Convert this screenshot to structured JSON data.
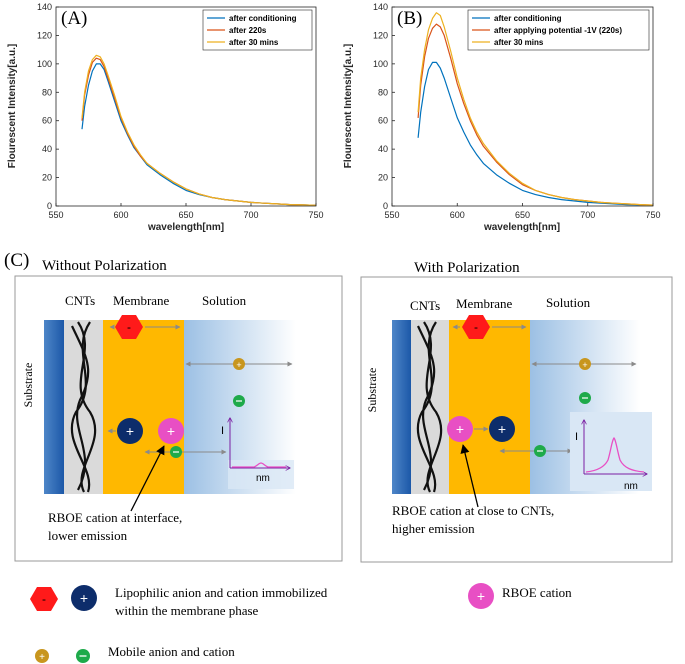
{
  "chart_data": [
    {
      "type": "line",
      "panel_label": "(A)",
      "xlabel": "wavelength[nm]",
      "ylabel": "Flourescent Intensity[a.u.]",
      "xlim": [
        550,
        750
      ],
      "ylim": [
        0,
        140
      ],
      "xticks": [
        "550",
        "600",
        "650",
        "700",
        "750"
      ],
      "yticks": [
        "0",
        "20",
        "40",
        "60",
        "80",
        "100",
        "120",
        "140"
      ],
      "legend_position": "top-right",
      "grid": false,
      "series": [
        {
          "name": "after conditioning",
          "color": "#0072BD",
          "x": [
            570,
            572,
            575,
            578,
            581,
            584,
            587,
            590,
            595,
            600,
            605,
            610,
            615,
            620,
            630,
            640,
            650,
            660,
            670,
            680,
            690,
            700,
            710,
            720,
            730,
            740,
            750
          ],
          "y": [
            54,
            70,
            85,
            95,
            100,
            100,
            96,
            88,
            74,
            60,
            50,
            41,
            35,
            29,
            22,
            16,
            11,
            8,
            6,
            4.5,
            3.5,
            2.5,
            2,
            1.5,
            1,
            0.8,
            0.5
          ]
        },
        {
          "name": "after 220s",
          "color": "#D95319",
          "x": [
            570,
            572,
            575,
            578,
            581,
            584,
            587,
            590,
            595,
            600,
            605,
            610,
            615,
            620,
            630,
            640,
            650,
            660,
            670,
            680,
            690,
            700,
            710,
            720,
            730,
            740,
            750
          ],
          "y": [
            60,
            78,
            92,
            101,
            104,
            103,
            98,
            90,
            76,
            62,
            51,
            42,
            35,
            30,
            23,
            17,
            12,
            8.5,
            6,
            4.5,
            3.5,
            2.5,
            2,
            1.5,
            1,
            0.8,
            0.5
          ]
        },
        {
          "name": "after 30 mins",
          "color": "#EDB120",
          "x": [
            570,
            572,
            575,
            578,
            581,
            584,
            587,
            590,
            595,
            600,
            605,
            610,
            615,
            620,
            630,
            640,
            650,
            660,
            670,
            680,
            690,
            700,
            710,
            720,
            730,
            740,
            750
          ],
          "y": [
            62,
            80,
            95,
            103,
            106,
            105,
            100,
            92,
            78,
            63,
            52,
            43,
            36,
            30,
            23,
            17,
            12,
            8.5,
            6,
            4.5,
            3.5,
            2.5,
            2,
            1.5,
            1,
            0.8,
            0.5
          ]
        }
      ]
    },
    {
      "type": "line",
      "panel_label": "(B)",
      "xlabel": "wavelength[nm]",
      "ylabel": "Flourescent Intensity[a.u.]",
      "xlim": [
        550,
        750
      ],
      "ylim": [
        0,
        140
      ],
      "xticks": [
        "550",
        "600",
        "650",
        "700",
        "750"
      ],
      "yticks": [
        "0",
        "20",
        "40",
        "60",
        "80",
        "100",
        "120",
        "140"
      ],
      "legend_position": "top-right",
      "grid": false,
      "series": [
        {
          "name": "after conditioning",
          "color": "#0072BD",
          "x": [
            570,
            572,
            575,
            578,
            581,
            584,
            587,
            590,
            595,
            600,
            605,
            610,
            615,
            620,
            630,
            640,
            650,
            660,
            670,
            680,
            690,
            700,
            710,
            720,
            730,
            740,
            750
          ],
          "y": [
            48,
            66,
            84,
            96,
            101,
            101,
            97,
            90,
            76,
            62,
            52,
            43,
            36,
            30,
            22,
            16,
            11,
            8,
            6,
            4.5,
            3.5,
            2.5,
            2,
            1.5,
            1,
            0.8,
            0.5
          ]
        },
        {
          "name": "after applying potential -1V (220s)",
          "color": "#D95319",
          "x": [
            570,
            572,
            575,
            578,
            581,
            584,
            587,
            590,
            595,
            600,
            605,
            610,
            615,
            620,
            630,
            640,
            650,
            660,
            670,
            680,
            690,
            700,
            710,
            720,
            730,
            740,
            750
          ],
          "y": [
            62,
            85,
            105,
            118,
            125,
            128,
            126,
            120,
            104,
            86,
            72,
            60,
            50,
            42,
            31,
            22,
            15,
            11,
            8,
            6,
            4.5,
            3.5,
            2.5,
            2,
            1.5,
            1,
            0.6
          ]
        },
        {
          "name": "after 30 mins",
          "color": "#EDB120",
          "x": [
            570,
            572,
            575,
            578,
            581,
            584,
            587,
            590,
            595,
            600,
            605,
            610,
            615,
            620,
            630,
            640,
            650,
            660,
            670,
            680,
            690,
            700,
            710,
            720,
            730,
            740,
            750
          ],
          "y": [
            66,
            90,
            110,
            124,
            132,
            136,
            134,
            126,
            109,
            90,
            75,
            62,
            52,
            44,
            32,
            23,
            16,
            11,
            8,
            6,
            4.5,
            3.5,
            2.5,
            2,
            1.5,
            1,
            0.6
          ]
        }
      ]
    }
  ],
  "panel_c": {
    "label": "(C)",
    "left": {
      "title": "Without Polarization",
      "cnts": "CNTs",
      "membrane": "Membrane",
      "solution": "Solution",
      "substrate": "Substrate",
      "inset_y": "I",
      "inset_x": "nm",
      "caption_line1": "RBOE cation at interface,",
      "caption_line2": "lower emission"
    },
    "right": {
      "title": "With Polarization",
      "cnts": "CNTs",
      "membrane": "Membrane",
      "solution": "Solution",
      "substrate": "Substrate",
      "inset_y": "I",
      "inset_x": "nm",
      "caption_line1": "RBOE cation at close to CNTs,",
      "caption_line2": "higher emission"
    },
    "symbols": {
      "minus": "-",
      "plus": "+"
    },
    "legend": {
      "lipophilic_line1": "Lipophilic anion and cation immobilized",
      "lipophilic_line2": "within the membrane phase",
      "rboe": "RBOE cation",
      "mobile": "Mobile anion and cation"
    },
    "colors": {
      "anion_red": "#FF1A1A",
      "cation_navy": "#0D2D6B",
      "rboe_pink": "#E84FC4",
      "mobile_gold": "#C8961E",
      "mobile_green": "#1EAA4A",
      "membrane": "#FFB800",
      "cnt_gray": "#DADADA"
    }
  }
}
